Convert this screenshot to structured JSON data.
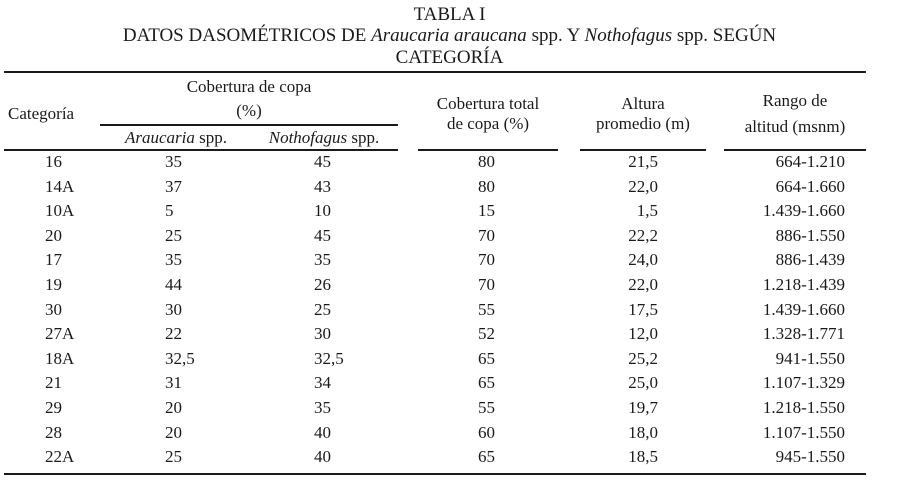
{
  "table": {
    "label": "TABLA I",
    "title_parts": {
      "prefix": "DATOS DASOMÉTRICOS DE ",
      "species1": "Araucaria araucana",
      "mid1": " spp. Y ",
      "species2": "Nothofagus",
      "mid2": " spp. SEGÚN",
      "line3": "CATEGORÍA"
    },
    "headers": {
      "categoria": "Categoría",
      "cobertura_copa_line1": "Cobertura de copa",
      "cobertura_copa_line2": "(%)",
      "araucaria_italic": "Araucaria",
      "araucaria_suffix": " spp.",
      "nothofagus_italic": "Nothofagus",
      "nothofagus_suffix": " spp.",
      "cobertura_total_line1": "Cobertura total",
      "cobertura_total_line2": "de copa (%)",
      "altura_line1": "Altura",
      "altura_line2": "promedio (m)",
      "rango_line1": "Rango de",
      "rango_line2": "altitud (msnm)"
    },
    "rows": [
      {
        "categoria": "16",
        "araucaria": "35",
        "nothofagus": "45",
        "cobertura_total": "80",
        "altura": "21,5",
        "rango": "664-1.210"
      },
      {
        "categoria": "14A",
        "araucaria": "37",
        "nothofagus": "43",
        "cobertura_total": "80",
        "altura": "22,0",
        "rango": "664-1.660"
      },
      {
        "categoria": "10A",
        "araucaria": "5",
        "nothofagus": "10",
        "cobertura_total": "15",
        "altura": "1,5",
        "rango": "1.439-1.660"
      },
      {
        "categoria": "20",
        "araucaria": "25",
        "nothofagus": "45",
        "cobertura_total": "70",
        "altura": "22,2",
        "rango": "886-1.550"
      },
      {
        "categoria": "17",
        "araucaria": "35",
        "nothofagus": "35",
        "cobertura_total": "70",
        "altura": "24,0",
        "rango": "886-1.439"
      },
      {
        "categoria": "19",
        "araucaria": "44",
        "nothofagus": "26",
        "cobertura_total": "70",
        "altura": "22,0",
        "rango": "1.218-1.439"
      },
      {
        "categoria": "30",
        "araucaria": "30",
        "nothofagus": "25",
        "cobertura_total": "55",
        "altura": "17,5",
        "rango": "1.439-1.660"
      },
      {
        "categoria": "27A",
        "araucaria": "22",
        "nothofagus": "30",
        "cobertura_total": "52",
        "altura": "12,0",
        "rango": "1.328-1.771"
      },
      {
        "categoria": "18A",
        "araucaria": "32,5",
        "nothofagus": "32,5",
        "cobertura_total": "65",
        "altura": "25,2",
        "rango": "941-1.550"
      },
      {
        "categoria": "21",
        "araucaria": "31",
        "nothofagus": "34",
        "cobertura_total": "65",
        "altura": "25,0",
        "rango": "1.107-1.329"
      },
      {
        "categoria": "29",
        "araucaria": "20",
        "nothofagus": "35",
        "cobertura_total": "55",
        "altura": "19,7",
        "rango": "1.218-1.550"
      },
      {
        "categoria": "28",
        "araucaria": "20",
        "nothofagus": "40",
        "cobertura_total": "60",
        "altura": "18,0",
        "rango": "1.107-1.550"
      },
      {
        "categoria": "22A",
        "araucaria": "25",
        "nothofagus": "40",
        "cobertura_total": "65",
        "altura": "18,5",
        "rango": "945-1.550"
      }
    ]
  }
}
